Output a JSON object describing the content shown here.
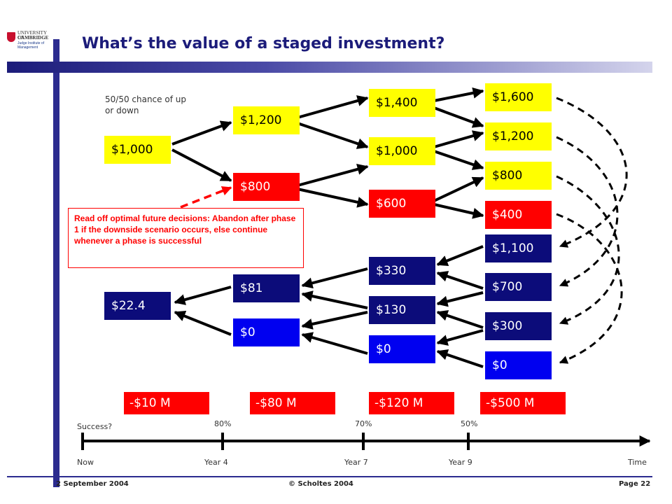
{
  "header": {
    "title": "What’s the value of a staged investment?",
    "logo": {
      "line1": "UNIVERSITY OF",
      "line2": "CAMBRIDGE",
      "line3": "Judge Institute of Management",
      "line4": "",
      "icon": "university-crest-icon"
    }
  },
  "tree": {
    "chance_note": "50/50 chance of up or down",
    "values": {
      "now": "$1,000",
      "p1_up": "$1,200",
      "p1_down": "$800",
      "p2_a": "$1,400",
      "p2_b": "$1,000",
      "p2_c": "$600",
      "p3_a": "$1,600",
      "p3_b": "$1,200",
      "p3_c": "$800",
      "p3_d": "$400"
    },
    "option": {
      "p3_a": "$1,100",
      "p3_b": "$700",
      "p3_c": "$300",
      "p3_d": "$0",
      "p2_a": "$330",
      "p2_b": "$130",
      "p2_c": "$0",
      "p1_a": "$81",
      "p1_b": "$0",
      "now": "$22.4"
    },
    "note": "Read off optimal future decisions: Abandon after phase 1 if the downside scenario occurs, else continue whenever a phase is successful"
  },
  "costs": [
    "-$10 M",
    "-$80 M",
    "-$120 M",
    "-$500 M"
  ],
  "timeline": {
    "success_label": "Success?",
    "success_rates": [
      "80%",
      "70%",
      "50%"
    ],
    "points": [
      "Now",
      "Year 4",
      "Year 7",
      "Year 9"
    ],
    "end_label": "Time"
  },
  "footer": {
    "date": "2 September 2004",
    "copyright": "© Scholtes 2004",
    "page": "Page 22"
  },
  "colors": {
    "title": "#1c1c7a",
    "up_node": "#ffff00",
    "down_node": "#ff0000",
    "option_node": "#0c0c7a",
    "zero_node": "#0000f0",
    "accent_bar": "#2b2b8f"
  }
}
